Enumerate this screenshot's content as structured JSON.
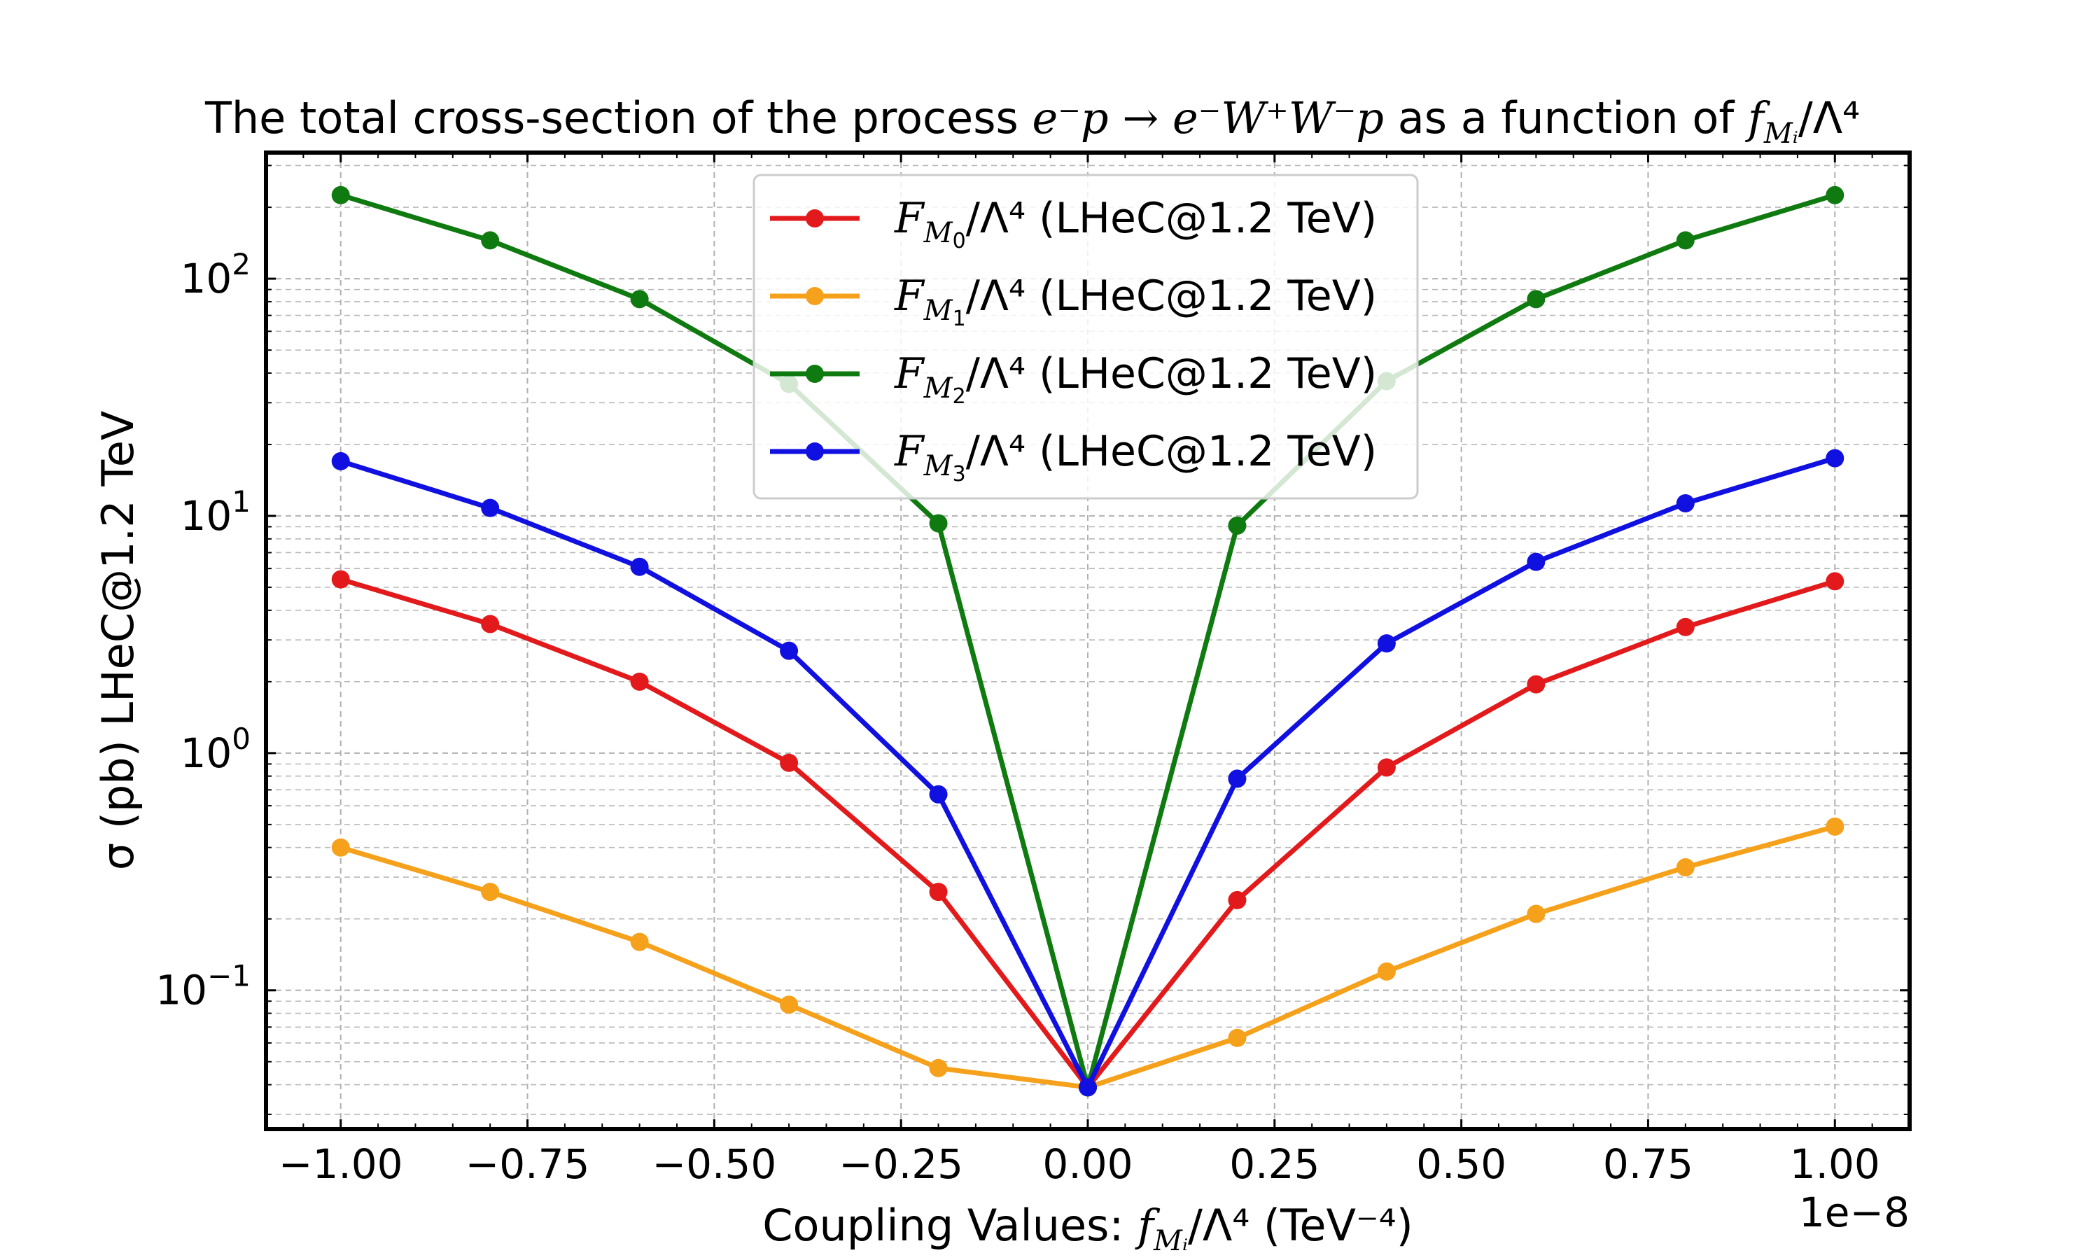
{
  "chart_data": {
    "type": "line",
    "title": {
      "prefix": "The total cross-section of the process ",
      "process": "e⁻p → e⁻W⁺W⁻p",
      "middle": " as a function of ",
      "symbol": "f",
      "symbol_sub": "Mᵢ",
      "suffix": "/Λ⁴"
    },
    "xlabel": {
      "prefix": "Coupling Values: ",
      "symbol": "f",
      "symbol_sub": "Mᵢ",
      "suffix": "/Λ⁴ (TeV⁻⁴)"
    },
    "ylabel": "σ (pb) LHeC@1.2 TeV",
    "x_offset_text": "1e−8",
    "x_scale_factor": 1e-08,
    "xlim": [
      -1.1,
      1.1
    ],
    "ylim": [
      0.026,
      340
    ],
    "yscale": "log",
    "grid": true,
    "legend_position": "upper center",
    "x_ticks": [
      -1.0,
      -0.75,
      -0.5,
      -0.25,
      0.0,
      0.25,
      0.5,
      0.75,
      1.0
    ],
    "x_tick_labels": [
      "−1.00",
      "−0.75",
      "−0.50",
      "−0.25",
      "0.00",
      "0.25",
      "0.50",
      "0.75",
      "1.00"
    ],
    "y_ticks": [
      {
        "value": 0.1,
        "base": "10",
        "exp": "−1"
      },
      {
        "value": 1,
        "base": "10",
        "exp": "0"
      },
      {
        "value": 10,
        "base": "10",
        "exp": "1"
      },
      {
        "value": 100,
        "base": "10",
        "exp": "2"
      }
    ],
    "x": [
      -1.0,
      -0.8,
      -0.6,
      -0.4,
      -0.2,
      0.0,
      0.2,
      0.4,
      0.6,
      0.8,
      1.0
    ],
    "series": [
      {
        "name": "F_M0/Λ⁴ (LHeC@1.2 TeV)",
        "legend_symbol": "F",
        "legend_sub": "M",
        "legend_subsub": "0",
        "legend_rest": "/Λ⁴ (LHeC@1.2 TeV)",
        "color": "#e31a1c",
        "values": [
          5.4,
          3.5,
          2.0,
          0.91,
          0.26,
          0.039,
          0.24,
          0.87,
          1.95,
          3.4,
          5.3
        ]
      },
      {
        "name": "F_M1/Λ⁴ (LHeC@1.2 TeV)",
        "legend_symbol": "F",
        "legend_sub": "M",
        "legend_subsub": "1",
        "legend_rest": "/Λ⁴ (LHeC@1.2 TeV)",
        "color": "#f5a11c",
        "values": [
          0.4,
          0.26,
          0.16,
          0.087,
          0.047,
          0.039,
          0.063,
          0.12,
          0.21,
          0.33,
          0.49
        ]
      },
      {
        "name": "F_M2/Λ⁴ (LHeC@1.2 TeV)",
        "legend_symbol": "F",
        "legend_sub": "M",
        "legend_subsub": "2",
        "legend_rest": "/Λ⁴ (LHeC@1.2 TeV)",
        "color": "#0f7a0f",
        "values": [
          225,
          145,
          82,
          36,
          9.3,
          0.039,
          9.1,
          37,
          82,
          145,
          225
        ]
      },
      {
        "name": "F_M3/Λ⁴ (LHeC@1.2 TeV)",
        "legend_symbol": "F",
        "legend_sub": "M",
        "legend_subsub": "3",
        "legend_rest": "/Λ⁴ (LHeC@1.2 TeV)",
        "color": "#1010e0",
        "values": [
          17,
          10.8,
          6.1,
          2.7,
          0.67,
          0.039,
          0.78,
          2.9,
          6.4,
          11.3,
          17.5
        ]
      }
    ]
  }
}
